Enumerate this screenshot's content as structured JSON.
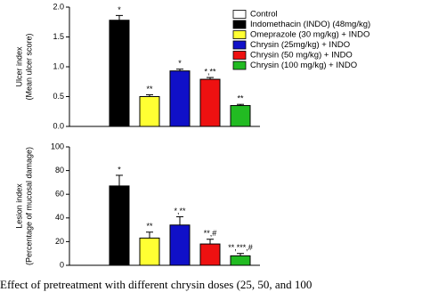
{
  "chart_data": [
    {
      "type": "bar",
      "ylabel": [
        "Ulcer index",
        "(Mean ulcer score)"
      ],
      "categories": [
        "Control",
        "Indomethacin (INDO) (48mg/kg)",
        "Omeprazole (30 mg/kg) + INDO",
        "Chrysin (25mg/kg) + INDO",
        "Chrysin (50 mg/kg) + INDO",
        "Chrysin (100 mg/kg) + INDO"
      ],
      "colors": [
        "#ffffff",
        "#000000",
        "#ffff33",
        "#1010c8",
        "#ee1111",
        "#22bb22"
      ],
      "values": [
        0,
        1.78,
        0.5,
        0.93,
        0.79,
        0.35
      ],
      "errors": [
        0,
        0.08,
        0.03,
        0.03,
        0.03,
        0.02
      ],
      "annotations": [
        null,
        "*",
        "**",
        "*",
        "*,**",
        "**"
      ],
      "ylim": [
        0,
        2
      ],
      "yticks": [
        {
          "value": 0,
          "label": "0.0"
        },
        0.5,
        {
          "value": 1,
          "label": "1.0"
        },
        1.5,
        {
          "value": 2,
          "label": "2.0"
        }
      ]
    },
    {
      "type": "bar",
      "ylabel": [
        "Lesion index",
        "(Percentage of mucosal damage)"
      ],
      "colors": [
        "#ffffff",
        "#000000",
        "#ffff33",
        "#1010c8",
        "#ee1111",
        "#22bb22"
      ],
      "values": [
        0,
        67,
        23,
        34,
        18,
        8
      ],
      "errors": [
        0,
        9,
        5,
        7,
        4,
        2
      ],
      "annotations": [
        null,
        "*",
        "**",
        "*,**",
        "**,#",
        "**,***,#"
      ],
      "ylim": [
        0,
        100
      ],
      "yticks": [
        0,
        20,
        40,
        60,
        80,
        100
      ]
    }
  ],
  "caption": "Effect of pretreatment with different chrysin doses (25, 50, and 100"
}
